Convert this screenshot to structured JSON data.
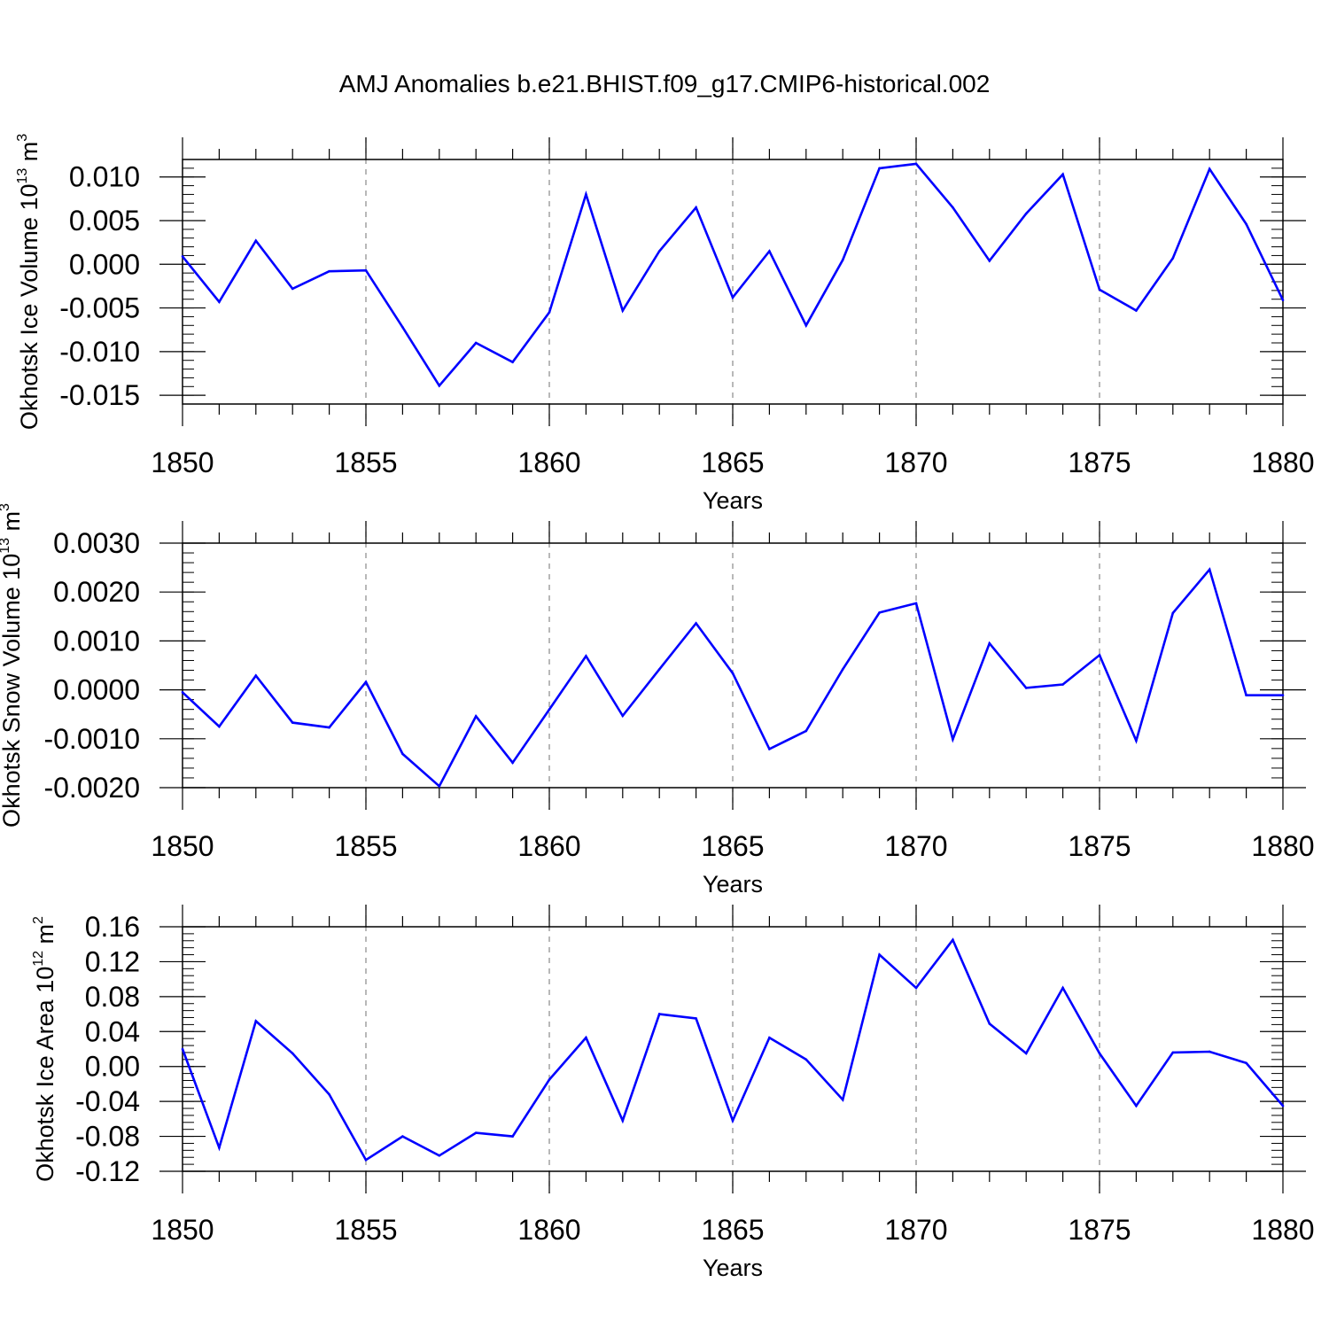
{
  "title": "AMJ Anomalies b.e21.BHIST.f09_g17.CMIP6-historical.002",
  "line_color": "#0000ff",
  "chart_data": [
    {
      "type": "line",
      "ylabel": {
        "main": "Okhotsk Ice Volume 10",
        "exp": "13",
        "unit": " m",
        "unit_exp": "3"
      },
      "xlabel": "Years",
      "xlim": [
        1850,
        1880
      ],
      "ylim": [
        -0.016,
        0.012
      ],
      "yticks": [
        -0.015,
        -0.01,
        -0.005,
        0,
        0.005,
        0.01
      ],
      "ytick_labels": [
        "-0.015",
        "-0.010",
        "-0.005",
        "0.000",
        "0.005",
        "0.010"
      ],
      "yminor_step": 0.001,
      "xticks": [
        1850,
        1855,
        1860,
        1865,
        1870,
        1875,
        1880
      ],
      "xtick_labels": [
        "1850",
        "1855",
        "1860",
        "1865",
        "1870",
        "1875",
        "1880"
      ],
      "grid": "dashed vertical at major x ticks",
      "x": [
        1850,
        1851,
        1852,
        1853,
        1854,
        1855,
        1856,
        1857,
        1858,
        1859,
        1860,
        1861,
        1862,
        1863,
        1864,
        1865,
        1866,
        1867,
        1868,
        1869,
        1870,
        1871,
        1872,
        1873,
        1874,
        1875,
        1876,
        1877,
        1878,
        1879,
        1880
      ],
      "values": [
        0.0009,
        -0.0043,
        0.0027,
        -0.0028,
        -0.0008,
        -0.0007,
        -0.0072,
        -0.0139,
        -0.009,
        -0.0112,
        -0.0055,
        0.008,
        -0.0053,
        0.0015,
        0.0065,
        -0.0038,
        0.0015,
        -0.007,
        0.0005,
        0.011,
        0.0115,
        0.0065,
        0.0004,
        0.0058,
        0.0103,
        -0.0029,
        -0.0053,
        0.0007,
        0.0109,
        0.0046,
        -0.0041
      ]
    },
    {
      "type": "line",
      "ylabel": {
        "main": "Okhotsk Snow Volume 10",
        "exp": "13",
        "unit": " m",
        "unit_exp": "3"
      },
      "xlabel": "Years",
      "xlim": [
        1850,
        1880
      ],
      "ylim": [
        -0.002,
        0.003
      ],
      "yticks": [
        -0.002,
        -0.001,
        0,
        0.001,
        0.002,
        0.003
      ],
      "ytick_labels": [
        "-0.0020",
        "-0.0010",
        "0.0000",
        "0.0010",
        "0.0020",
        "0.0030"
      ],
      "yminor_step": 0.0002,
      "xticks": [
        1850,
        1855,
        1860,
        1865,
        1870,
        1875,
        1880
      ],
      "xtick_labels": [
        "1850",
        "1855",
        "1860",
        "1865",
        "1870",
        "1875",
        "1880"
      ],
      "grid": "dashed vertical at major x ticks",
      "x": [
        1850,
        1851,
        1852,
        1853,
        1854,
        1855,
        1856,
        1857,
        1858,
        1859,
        1860,
        1861,
        1862,
        1863,
        1864,
        1865,
        1866,
        1867,
        1868,
        1869,
        1870,
        1871,
        1872,
        1873,
        1874,
        1875,
        1876,
        1877,
        1878,
        1879,
        1880
      ],
      "values": [
        -5e-05,
        -0.00075,
        0.00029,
        -0.00067,
        -0.00077,
        0.00016,
        -0.00131,
        -0.00197,
        -0.00054,
        -0.00149,
        -0.0004,
        0.00069,
        -0.00053,
        0.00042,
        0.00136,
        0.00034,
        -0.00121,
        -0.00084,
        0.00042,
        0.00158,
        0.00177,
        -0.00101,
        0.00095,
        4e-05,
        0.00011,
        0.00071,
        -0.00104,
        0.00157,
        0.00246,
        -0.00011,
        -0.00011
      ]
    },
    {
      "type": "line",
      "ylabel": {
        "main": "Okhotsk Ice Area 10",
        "exp": "12",
        "unit": " m",
        "unit_exp": "2"
      },
      "xlabel": "Years",
      "xlim": [
        1850,
        1880
      ],
      "ylim": [
        -0.12,
        0.16
      ],
      "yticks": [
        -0.12,
        -0.08,
        -0.04,
        0,
        0.04,
        0.08,
        0.12,
        0.16
      ],
      "ytick_labels": [
        "-0.12",
        "-0.08",
        "-0.04",
        "0.00",
        "0.04",
        "0.08",
        "0.12",
        "0.16"
      ],
      "yminor_step": 0.008,
      "xticks": [
        1850,
        1855,
        1860,
        1865,
        1870,
        1875,
        1880
      ],
      "xtick_labels": [
        "1850",
        "1855",
        "1860",
        "1865",
        "1870",
        "1875",
        "1880"
      ],
      "grid": "dashed vertical at major x ticks",
      "x": [
        1850,
        1851,
        1852,
        1853,
        1854,
        1855,
        1856,
        1857,
        1858,
        1859,
        1860,
        1861,
        1862,
        1863,
        1864,
        1865,
        1866,
        1867,
        1868,
        1869,
        1870,
        1871,
        1872,
        1873,
        1874,
        1875,
        1876,
        1877,
        1878,
        1879,
        1880
      ],
      "values": [
        0.02,
        -0.093,
        0.052,
        0.015,
        -0.032,
        -0.107,
        -0.08,
        -0.102,
        -0.076,
        -0.08,
        -0.015,
        0.033,
        -0.062,
        0.06,
        0.055,
        -0.062,
        0.033,
        0.008,
        -0.038,
        0.128,
        0.09,
        0.145,
        0.049,
        0.015,
        0.09,
        0.015,
        -0.045,
        0.016,
        0.017,
        0.004,
        -0.045
      ]
    }
  ]
}
